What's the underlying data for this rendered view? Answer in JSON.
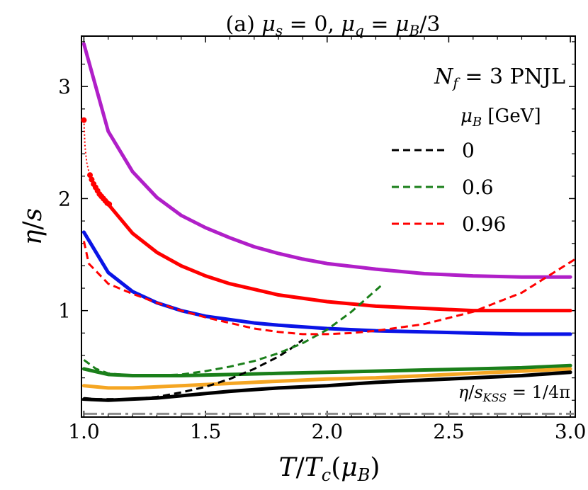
{
  "chart_data": {
    "type": "line",
    "title": "(a) μs = 0, μq = μB/3",
    "xlabel": "T/Tc(μB)",
    "ylabel": "η/s",
    "xlim": [
      0.99,
      3.02
    ],
    "ylim": [
      0.05,
      3.45
    ],
    "x_ticks": [
      1.0,
      1.5,
      2.0,
      2.5,
      3.0
    ],
    "x_tick_labels": [
      "1.0",
      "1.5",
      "2.0",
      "2.5",
      "3.0"
    ],
    "y_ticks": [
      1,
      2,
      3
    ],
    "y_tick_labels": [
      "1",
      "2",
      "3"
    ],
    "model_label": "N_f = 3 PNJL",
    "legend_title": "μB [GeV]",
    "legend_position": "top-right",
    "grid": false,
    "kss_label": "η/s_KSS = 1/4π",
    "kss_value": 0.0796,
    "legend": [
      {
        "label": "0",
        "color": "#000000",
        "dash": "dashed"
      },
      {
        "label": "0.6",
        "color": "#1a7f1a",
        "dash": "dashed"
      },
      {
        "label": "0.96",
        "color": "#ff0000",
        "dash": "dashed"
      }
    ],
    "solid_series": [
      {
        "color": "#b01fc8",
        "x": [
          1.0,
          1.1,
          1.2,
          1.3,
          1.4,
          1.5,
          1.6,
          1.7,
          1.8,
          1.9,
          2.0,
          2.2,
          2.4,
          2.6,
          2.8,
          3.0
        ],
        "y": [
          3.38,
          2.6,
          2.24,
          2.01,
          1.85,
          1.74,
          1.65,
          1.57,
          1.51,
          1.46,
          1.42,
          1.37,
          1.33,
          1.31,
          1.3,
          1.3
        ]
      },
      {
        "color": "#ff0000",
        "x": [
          1.1,
          1.2,
          1.3,
          1.4,
          1.5,
          1.6,
          1.7,
          1.8,
          1.9,
          2.0,
          2.2,
          2.4,
          2.6,
          2.8,
          3.0
        ],
        "y": [
          1.95,
          1.69,
          1.52,
          1.4,
          1.31,
          1.24,
          1.19,
          1.14,
          1.11,
          1.08,
          1.04,
          1.02,
          1.0,
          1.0,
          1.0
        ]
      },
      {
        "color": "#0a14e6",
        "x": [
          1.0,
          1.1,
          1.2,
          1.3,
          1.4,
          1.5,
          1.6,
          1.7,
          1.8,
          2.0,
          2.2,
          2.4,
          2.6,
          2.8,
          3.0
        ],
        "y": [
          1.7,
          1.34,
          1.17,
          1.07,
          1.0,
          0.95,
          0.92,
          0.89,
          0.87,
          0.84,
          0.82,
          0.81,
          0.8,
          0.79,
          0.79
        ]
      },
      {
        "color": "#1a7f1a",
        "x": [
          1.0,
          1.1,
          1.2,
          1.4,
          1.6,
          1.8,
          2.0,
          2.2,
          2.4,
          2.6,
          2.8,
          3.0
        ],
        "y": [
          0.48,
          0.43,
          0.42,
          0.42,
          0.43,
          0.44,
          0.45,
          0.46,
          0.47,
          0.48,
          0.49,
          0.51
        ]
      },
      {
        "color": "#f5a623",
        "x": [
          1.0,
          1.1,
          1.2,
          1.4,
          1.6,
          1.8,
          2.0,
          2.2,
          2.4,
          2.6,
          2.8,
          3.0
        ],
        "y": [
          0.33,
          0.31,
          0.31,
          0.33,
          0.35,
          0.37,
          0.39,
          0.4,
          0.42,
          0.44,
          0.46,
          0.48
        ]
      },
      {
        "color": "#000000",
        "x": [
          1.0,
          1.1,
          1.2,
          1.3,
          1.4,
          1.6,
          1.8,
          2.0,
          2.2,
          2.4,
          2.6,
          2.8,
          3.0
        ],
        "y": [
          0.21,
          0.2,
          0.21,
          0.22,
          0.24,
          0.28,
          0.31,
          0.33,
          0.36,
          0.38,
          0.4,
          0.42,
          0.45
        ]
      }
    ],
    "dashed_series": [
      {
        "name": "0",
        "color": "#000000",
        "x": [
          1.0,
          1.05,
          1.1,
          1.2,
          1.3,
          1.4,
          1.5,
          1.6,
          1.7,
          1.8,
          1.85,
          1.9
        ],
        "y": [
          0.22,
          0.21,
          0.21,
          0.21,
          0.23,
          0.27,
          0.32,
          0.39,
          0.48,
          0.59,
          0.66,
          0.74
        ]
      },
      {
        "name": "0.6",
        "color": "#1a7f1a",
        "x": [
          1.0,
          1.05,
          1.1,
          1.2,
          1.3,
          1.4,
          1.5,
          1.6,
          1.7,
          1.8,
          1.9,
          2.0,
          2.1,
          2.22
        ],
        "y": [
          0.56,
          0.48,
          0.44,
          0.42,
          0.42,
          0.43,
          0.46,
          0.5,
          0.55,
          0.62,
          0.71,
          0.83,
          0.99,
          1.22
        ]
      },
      {
        "name": "0.96",
        "color": "#ff0000",
        "x": [
          1.0,
          1.02,
          1.1,
          1.2,
          1.3,
          1.4,
          1.5,
          1.6,
          1.7,
          1.8,
          1.9,
          2.0,
          2.1,
          2.2,
          2.4,
          2.6,
          2.8,
          3.02
        ],
        "y": [
          1.62,
          1.42,
          1.24,
          1.15,
          1.07,
          1.0,
          0.94,
          0.89,
          0.84,
          0.81,
          0.79,
          0.79,
          0.8,
          0.82,
          0.88,
          0.99,
          1.16,
          1.46
        ]
      }
    ],
    "red_points": {
      "color": "#ff0000",
      "x": [
        1.0,
        1.004,
        1.008,
        1.012,
        1.018,
        1.025,
        1.032,
        1.04,
        1.048,
        1.056,
        1.064,
        1.072,
        1.08,
        1.088,
        1.096,
        1.104
      ],
      "y": [
        2.7,
        2.48,
        2.39,
        2.32,
        2.26,
        2.21,
        2.17,
        2.13,
        2.1,
        2.07,
        2.04,
        2.02,
        2.0,
        1.98,
        1.96,
        1.95
      ]
    }
  }
}
